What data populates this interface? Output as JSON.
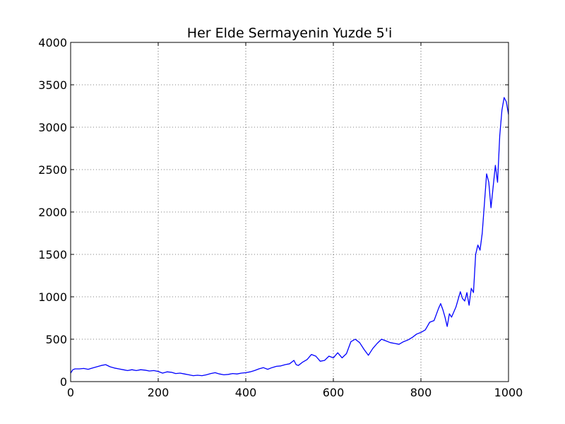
{
  "chart_data": {
    "type": "line",
    "title": "Her Elde Sermayenin Yuzde 5'i",
    "xlabel": "",
    "ylabel": "",
    "xlim": [
      0,
      1000
    ],
    "ylim": [
      0,
      4000
    ],
    "xticks": [
      0,
      200,
      400,
      600,
      800,
      1000
    ],
    "yticks": [
      0,
      500,
      1000,
      1500,
      2000,
      2500,
      3000,
      3500,
      4000
    ],
    "xtick_labels": [
      "0",
      "200",
      "400",
      "600",
      "800",
      "1000"
    ],
    "ytick_labels": [
      "0",
      "500",
      "1000",
      "1500",
      "2000",
      "2500",
      "3000",
      "3500",
      "4000"
    ],
    "grid": true,
    "legend": false,
    "series": [
      {
        "color": "#0000ff",
        "x": [
          0,
          5,
          10,
          20,
          30,
          40,
          50,
          60,
          70,
          80,
          90,
          100,
          110,
          120,
          130,
          140,
          150,
          160,
          170,
          180,
          190,
          200,
          210,
          220,
          230,
          240,
          250,
          260,
          270,
          280,
          290,
          300,
          310,
          320,
          330,
          340,
          350,
          360,
          370,
          380,
          390,
          400,
          410,
          420,
          430,
          440,
          450,
          460,
          470,
          480,
          490,
          500,
          510,
          515,
          520,
          530,
          540,
          550,
          560,
          570,
          580,
          590,
          600,
          610,
          620,
          630,
          640,
          650,
          660,
          670,
          680,
          690,
          700,
          710,
          720,
          730,
          740,
          750,
          760,
          770,
          780,
          790,
          800,
          810,
          820,
          830,
          840,
          845,
          850,
          855,
          860,
          865,
          870,
          880,
          890,
          895,
          900,
          905,
          910,
          915,
          920,
          925,
          930,
          935,
          940,
          945,
          950,
          955,
          960,
          965,
          970,
          975,
          980,
          985,
          990,
          995,
          1000
        ],
        "y": [
          100,
          140,
          150,
          150,
          155,
          145,
          160,
          175,
          190,
          200,
          175,
          160,
          150,
          140,
          130,
          140,
          130,
          140,
          135,
          125,
          130,
          120,
          100,
          115,
          110,
          95,
          100,
          90,
          80,
          70,
          75,
          70,
          80,
          95,
          105,
          90,
          80,
          85,
          95,
          90,
          100,
          105,
          115,
          130,
          150,
          165,
          145,
          165,
          180,
          185,
          200,
          210,
          250,
          200,
          190,
          230,
          260,
          320,
          300,
          240,
          250,
          300,
          280,
          340,
          280,
          330,
          470,
          500,
          460,
          380,
          310,
          390,
          450,
          500,
          480,
          460,
          450,
          440,
          470,
          490,
          520,
          560,
          580,
          610,
          700,
          720,
          860,
          920,
          850,
          760,
          650,
          800,
          760,
          880,
          1060,
          980,
          950,
          1050,
          900,
          1100,
          1050,
          1500,
          1610,
          1550,
          1750,
          2100,
          2450,
          2350,
          2050,
          2300,
          2550,
          2350,
          2900,
          3200,
          3350,
          3300,
          3150
        ]
      }
    ]
  }
}
